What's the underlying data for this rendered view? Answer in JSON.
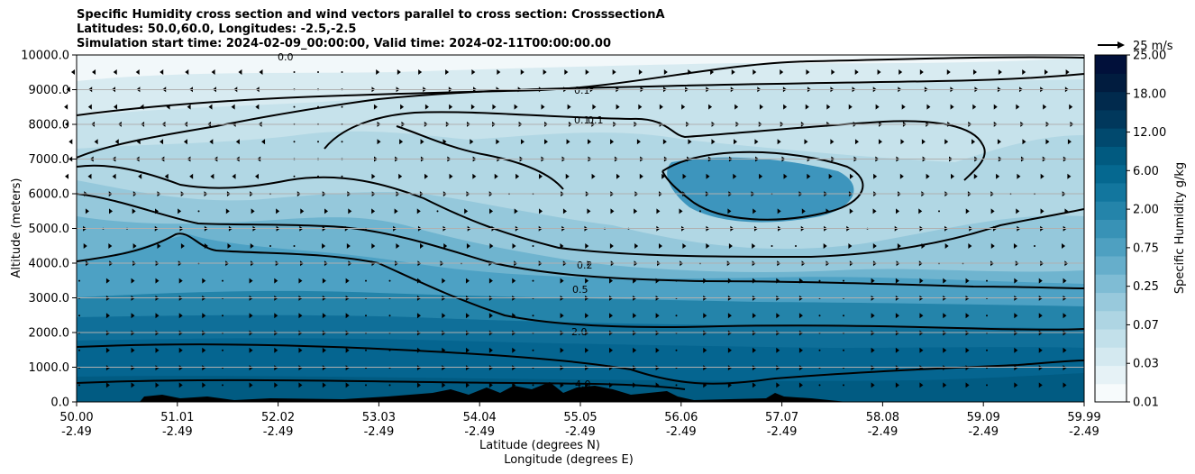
{
  "chart_data": {
    "type": "contour-cross-section",
    "title_lines": [
      "Specific Humidity cross section and wind vectors parallel to cross section: CrosssectionA",
      "Latitudes: 50.0,60.0, Longitudes: -2.5,-2.5",
      "Simulation start time: 2024-02-09_00:00:00, Valid time: 2024-02-11T00:00:00.00"
    ],
    "ylabel": "Altitude (meters)",
    "xlabel_lat": "Latitude (degrees N)",
    "xlabel_lon": "Longitude (degrees E)",
    "ylim": [
      0,
      10000
    ],
    "y_ticks": [
      "0.0",
      "1000.0",
      "2000.0",
      "3000.0",
      "4000.0",
      "5000.0",
      "6000.0",
      "7000.0",
      "8000.0",
      "9000.0",
      "10000.0"
    ],
    "x_ticks": [
      {
        "lat": "50.00",
        "lon": "-2.49"
      },
      {
        "lat": "51.01",
        "lon": "-2.49"
      },
      {
        "lat": "52.02",
        "lon": "-2.49"
      },
      {
        "lat": "53.03",
        "lon": "-2.49"
      },
      {
        "lat": "54.04",
        "lon": "-2.49"
      },
      {
        "lat": "55.05",
        "lon": "-2.49"
      },
      {
        "lat": "56.06",
        "lon": "-2.49"
      },
      {
        "lat": "57.07",
        "lon": "-2.49"
      },
      {
        "lat": "58.08",
        "lon": "-2.49"
      },
      {
        "lat": "59.09",
        "lon": "-2.49"
      },
      {
        "lat": "59.99",
        "lon": "-2.49"
      }
    ],
    "colorbar": {
      "label": "Specific Humidity g/kg",
      "tick_labels": [
        "0.01",
        "0.03",
        "0.07",
        "0.25",
        "0.75",
        "2.00",
        "6.00",
        "12.00",
        "18.00",
        "25.00"
      ],
      "colors": [
        "#f7fbfc",
        "#e6f2f6",
        "#d4e9f0",
        "#c2e0ea",
        "#aed5e3",
        "#98c9dc",
        "#7fbcd4",
        "#66aecb",
        "#4ea0c1",
        "#3892b6",
        "#2484aa",
        "#12769e",
        "#056890",
        "#015a80",
        "#01496e",
        "#01385c",
        "#012a4d",
        "#011c3f",
        "#01103a"
      ]
    },
    "quiver_key": "25 m/s",
    "contour_labels": [
      "0.0",
      "0.1",
      "0.1",
      "0.1",
      "0.2",
      "0.5",
      "2.0",
      "4.0"
    ]
  }
}
